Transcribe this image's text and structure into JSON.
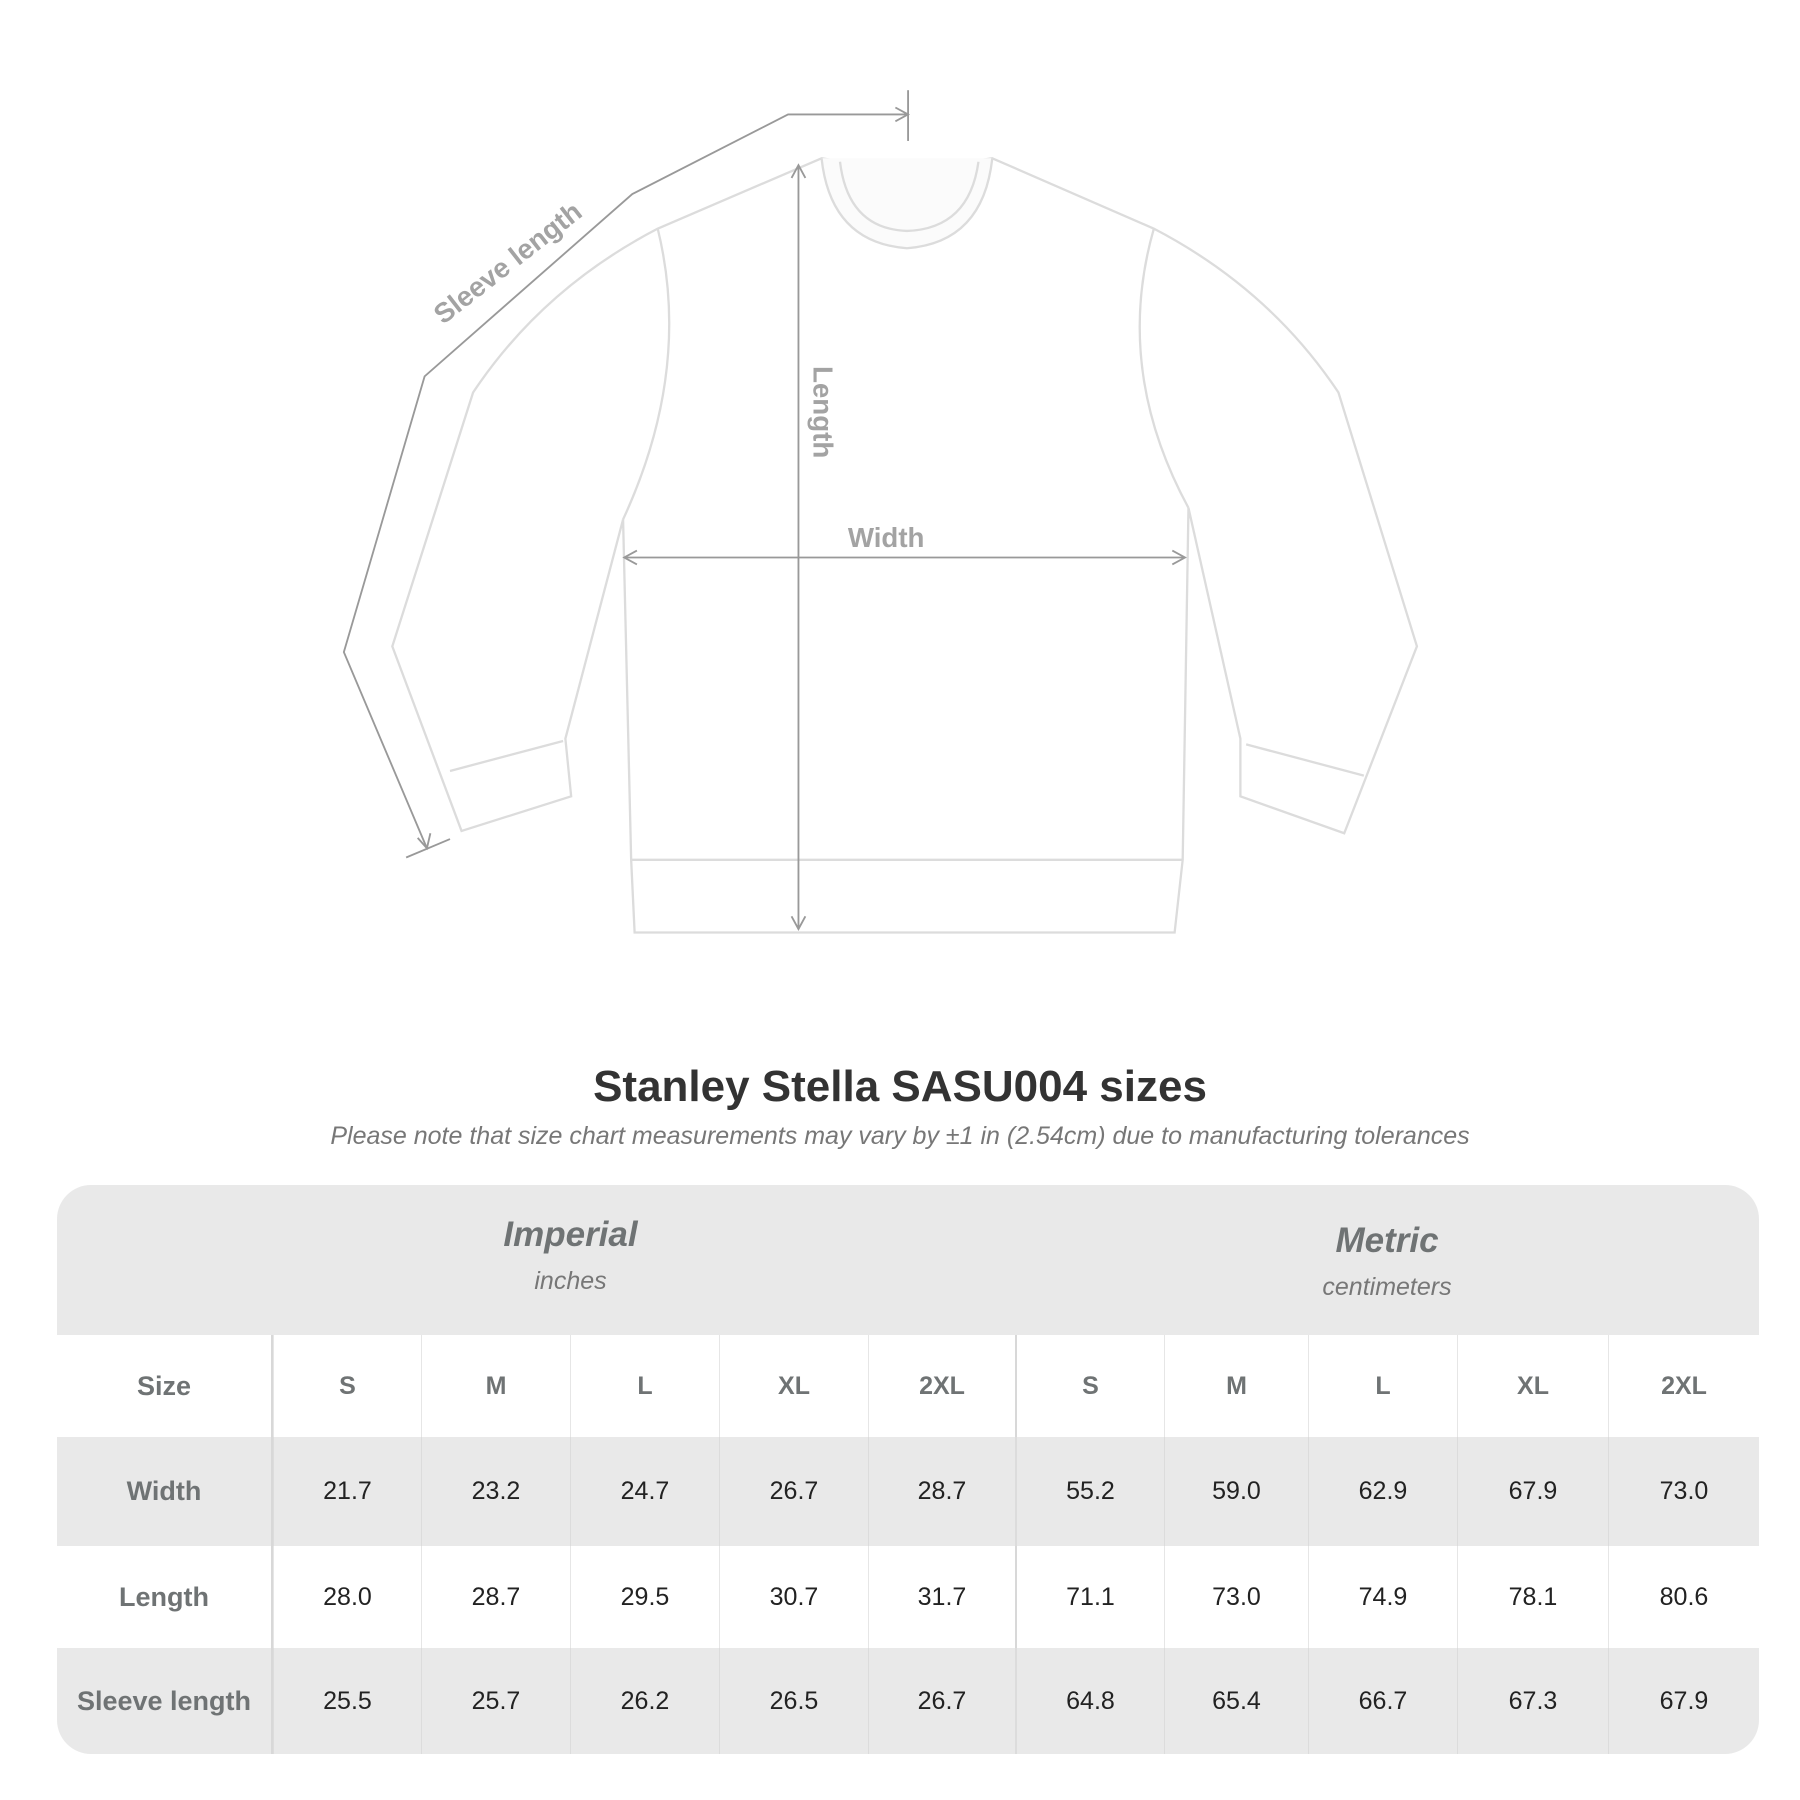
{
  "diagram": {
    "labels": {
      "sleeve": "Sleeve length",
      "length": "Length",
      "width": "Width"
    },
    "colors": {
      "measure_line": "#999999",
      "garment_fill": "#ffffff",
      "garment_stroke": "#dcdcdc"
    }
  },
  "title": "Stanley Stella SASU004 sizes",
  "subtitle": "Please note that size chart measurements may vary by ±1 in (2.54cm) due to manufacturing tolerances",
  "table": {
    "imperial": {
      "name": "Imperial",
      "unit": "inches"
    },
    "metric": {
      "name": "Metric",
      "unit": "centimeters"
    },
    "size_label": "Size",
    "sizes": [
      "S",
      "M",
      "L",
      "XL",
      "2XL",
      "S",
      "M",
      "L",
      "XL",
      "2XL"
    ],
    "rows": [
      {
        "label": "Width",
        "values": [
          "21.7",
          "23.2",
          "24.7",
          "26.7",
          "28.7",
          "55.2",
          "59.0",
          "62.9",
          "67.9",
          "73.0"
        ]
      },
      {
        "label": "Length",
        "values": [
          "28.0",
          "28.7",
          "29.5",
          "30.7",
          "31.7",
          "71.1",
          "73.0",
          "74.9",
          "78.1",
          "80.6"
        ]
      },
      {
        "label": "Sleeve length",
        "values": [
          "25.5",
          "25.7",
          "26.2",
          "26.5",
          "26.7",
          "64.8",
          "65.4",
          "66.7",
          "67.3",
          "67.9"
        ]
      }
    ]
  }
}
